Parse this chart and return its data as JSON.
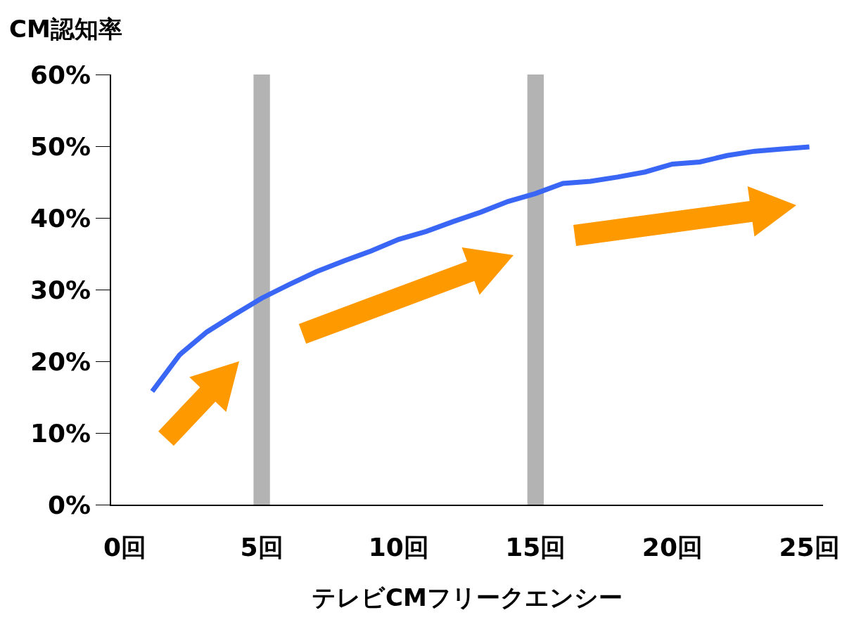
{
  "chart_data": {
    "type": "line",
    "ylabel": "CM認知率",
    "xlabel": "テレビCMフリークエンシー",
    "x": [
      1,
      2,
      3,
      4,
      5,
      6,
      7,
      8,
      9,
      10,
      11,
      12,
      13,
      14,
      15,
      16,
      17,
      18,
      19,
      20,
      21,
      22,
      23,
      24,
      25
    ],
    "series": [
      {
        "color": "#3a66f5",
        "values": [
          15.8,
          20.9,
          24.1,
          26.5,
          28.8,
          30.7,
          32.5,
          34.0,
          35.4,
          37.0,
          38.1,
          39.5,
          40.8,
          42.3,
          43.4,
          44.8,
          45.1,
          45.7,
          46.4,
          47.5,
          47.8,
          48.7,
          49.3,
          49.6,
          49.9
        ]
      }
    ],
    "xlim": [
      -0.5,
      25.5
    ],
    "xticks": [
      {
        "value": 0,
        "label": "0回"
      },
      {
        "value": 5,
        "label": "5回"
      },
      {
        "value": 10,
        "label": "10回"
      },
      {
        "value": 15,
        "label": "15回"
      },
      {
        "value": 20,
        "label": "20回"
      },
      {
        "value": 25,
        "label": "25回"
      }
    ],
    "ylim": [
      0,
      60
    ],
    "yticks": [
      {
        "value": 0,
        "label": "0%"
      },
      {
        "value": 10,
        "label": "10%"
      },
      {
        "value": 20,
        "label": "20%"
      },
      {
        "value": 30,
        "label": "30%"
      },
      {
        "value": 40,
        "label": "40%"
      },
      {
        "value": 50,
        "label": "50%"
      },
      {
        "value": 60,
        "label": "60%"
      }
    ],
    "bands": [
      {
        "axis": "x",
        "from": 4.7,
        "to": 5.3,
        "color": "#b3b3b3"
      },
      {
        "axis": "x",
        "from": 14.7,
        "to": 15.3,
        "color": "#b3b3b3"
      }
    ],
    "grid": false,
    "marker": "none",
    "line_style": "solid"
  }
}
